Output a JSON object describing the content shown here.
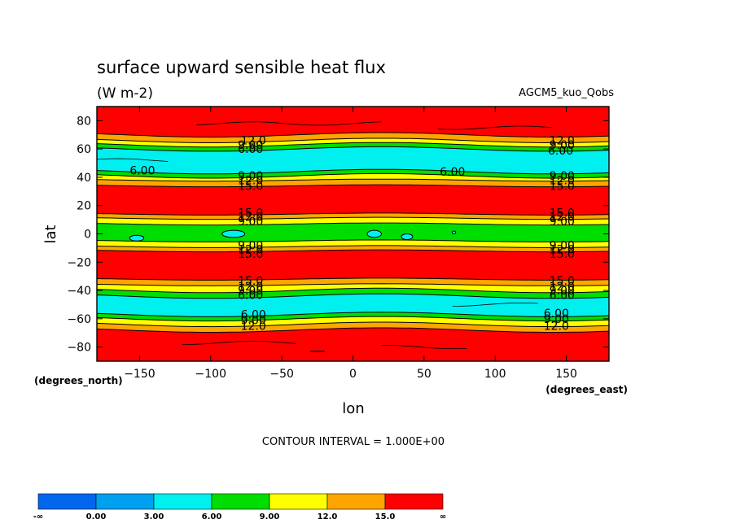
{
  "chart_data": {
    "type": "heatmap",
    "title": "surface upward sensible heat flux",
    "subtitle": "(W m-2)",
    "run_label": "AGCM5_kuo_Qobs",
    "xlabel": "lon",
    "ylabel": "lat",
    "x_units": "(degrees_east)",
    "y_units": "(degrees_north)",
    "xlim": [
      -180,
      180
    ],
    "ylim": [
      -90,
      90
    ],
    "x_ticks": [
      -150,
      -100,
      -50,
      0,
      50,
      100,
      150
    ],
    "y_ticks": [
      80,
      60,
      40,
      20,
      0,
      -20,
      -40,
      -60,
      -80
    ],
    "x_tick_labels": [
      "−150",
      "−100",
      "−50",
      "0",
      "50",
      "100",
      "150"
    ],
    "y_tick_labels": [
      "80",
      "60",
      "40",
      "20",
      "0",
      "−20",
      "−40",
      "−60",
      "−80"
    ],
    "contour_interval_text": "CONTOUR INTERVAL = 1.000E+00",
    "colorbar": {
      "boundaries": [
        "-∞",
        "0.00",
        "3.00",
        "6.00",
        "9.00",
        "12.0",
        "15.0",
        "∞"
      ],
      "colors": [
        "#0066ee",
        "#00a0f0",
        "#00f0f0",
        "#00dd00",
        "#ffff00",
        "#ffa500",
        "#ff0000"
      ]
    },
    "bands": [
      {
        "lat": [
          70,
          90
        ],
        "level": 15
      },
      {
        "lat": [
          66,
          70
        ],
        "level": 12
      },
      {
        "lat": [
          63,
          66
        ],
        "level": 9
      },
      {
        "lat": [
          60,
          63
        ],
        "level": 6
      },
      {
        "lat": [
          44,
          60
        ],
        "level": 3
      },
      {
        "lat": [
          41,
          44
        ],
        "level": 6
      },
      {
        "lat": [
          38,
          41
        ],
        "level": 9
      },
      {
        "lat": [
          34,
          38
        ],
        "level": 12
      },
      {
        "lat": [
          14,
          34
        ],
        "level": 15
      },
      {
        "lat": [
          11,
          14
        ],
        "level": 12
      },
      {
        "lat": [
          7,
          11
        ],
        "level": 9
      },
      {
        "lat": [
          -5,
          7
        ],
        "level": 6
      },
      {
        "lat": [
          -9,
          -5
        ],
        "level": 9
      },
      {
        "lat": [
          -12,
          -9
        ],
        "level": 12
      },
      {
        "lat": [
          -32,
          -12
        ],
        "level": 15
      },
      {
        "lat": [
          -36,
          -32
        ],
        "level": 12
      },
      {
        "lat": [
          -40,
          -36
        ],
        "level": 9
      },
      {
        "lat": [
          -44,
          -40
        ],
        "level": 6
      },
      {
        "lat": [
          -57,
          -44
        ],
        "level": 3
      },
      {
        "lat": [
          -60,
          -57
        ],
        "level": 6
      },
      {
        "lat": [
          -64,
          -60
        ],
        "level": 9
      },
      {
        "lat": [
          -68,
          -64
        ],
        "level": 12
      },
      {
        "lat": [
          -90,
          -68
        ],
        "level": 15
      }
    ],
    "contour_labels": [
      {
        "text": "12.0",
        "lon": -70,
        "lat": 66
      },
      {
        "text": "9.00",
        "lon": -72,
        "lat": 63
      },
      {
        "text": "6.00",
        "lon": -72,
        "lat": 60
      },
      {
        "text": "12.0",
        "lon": 147,
        "lat": 66
      },
      {
        "text": "9.00",
        "lon": 147,
        "lat": 63
      },
      {
        "text": "6.00",
        "lon": 146,
        "lat": 59
      },
      {
        "text": "6.00",
        "lon": -148,
        "lat": 45
      },
      {
        "text": "6.00",
        "lon": 70,
        "lat": 44
      },
      {
        "text": "9.00",
        "lon": -72,
        "lat": 41
      },
      {
        "text": "12.0",
        "lon": -72,
        "lat": 38
      },
      {
        "text": "15.0",
        "lon": -72,
        "lat": 34
      },
      {
        "text": "9.00",
        "lon": 147,
        "lat": 41
      },
      {
        "text": "12.0",
        "lon": 147,
        "lat": 38
      },
      {
        "text": "15.0",
        "lon": 147,
        "lat": 34
      },
      {
        "text": "15.0",
        "lon": -72,
        "lat": 15
      },
      {
        "text": "12.0",
        "lon": -72,
        "lat": 12
      },
      {
        "text": "9.00",
        "lon": -72,
        "lat": 9
      },
      {
        "text": "15.0",
        "lon": 147,
        "lat": 15
      },
      {
        "text": "12.0",
        "lon": 147,
        "lat": 12
      },
      {
        "text": "9.00",
        "lon": 147,
        "lat": 9
      },
      {
        "text": "9.00",
        "lon": -72,
        "lat": -8
      },
      {
        "text": "12.0",
        "lon": -72,
        "lat": -11
      },
      {
        "text": "15.0",
        "lon": -72,
        "lat": -14
      },
      {
        "text": "9.00",
        "lon": 147,
        "lat": -8
      },
      {
        "text": "12.0",
        "lon": 147,
        "lat": -11
      },
      {
        "text": "15.0",
        "lon": 147,
        "lat": -14
      },
      {
        "text": "15.0",
        "lon": -72,
        "lat": -33
      },
      {
        "text": "12.0",
        "lon": -72,
        "lat": -37
      },
      {
        "text": "9.00",
        "lon": -72,
        "lat": -40
      },
      {
        "text": "6.00",
        "lon": -72,
        "lat": -43
      },
      {
        "text": "15.0",
        "lon": 147,
        "lat": -33
      },
      {
        "text": "12.0",
        "lon": 147,
        "lat": -37
      },
      {
        "text": "9.00",
        "lon": 147,
        "lat": -40
      },
      {
        "text": "6.00",
        "lon": 147,
        "lat": -43
      },
      {
        "text": "6.00",
        "lon": -70,
        "lat": -57
      },
      {
        "text": "9.00",
        "lon": -70,
        "lat": -61
      },
      {
        "text": "12.0",
        "lon": -70,
        "lat": -65
      },
      {
        "text": "6.00",
        "lon": 143,
        "lat": -56
      },
      {
        "text": "9.00",
        "lon": 143,
        "lat": -60
      },
      {
        "text": "12.0",
        "lon": 143,
        "lat": -65
      }
    ]
  }
}
